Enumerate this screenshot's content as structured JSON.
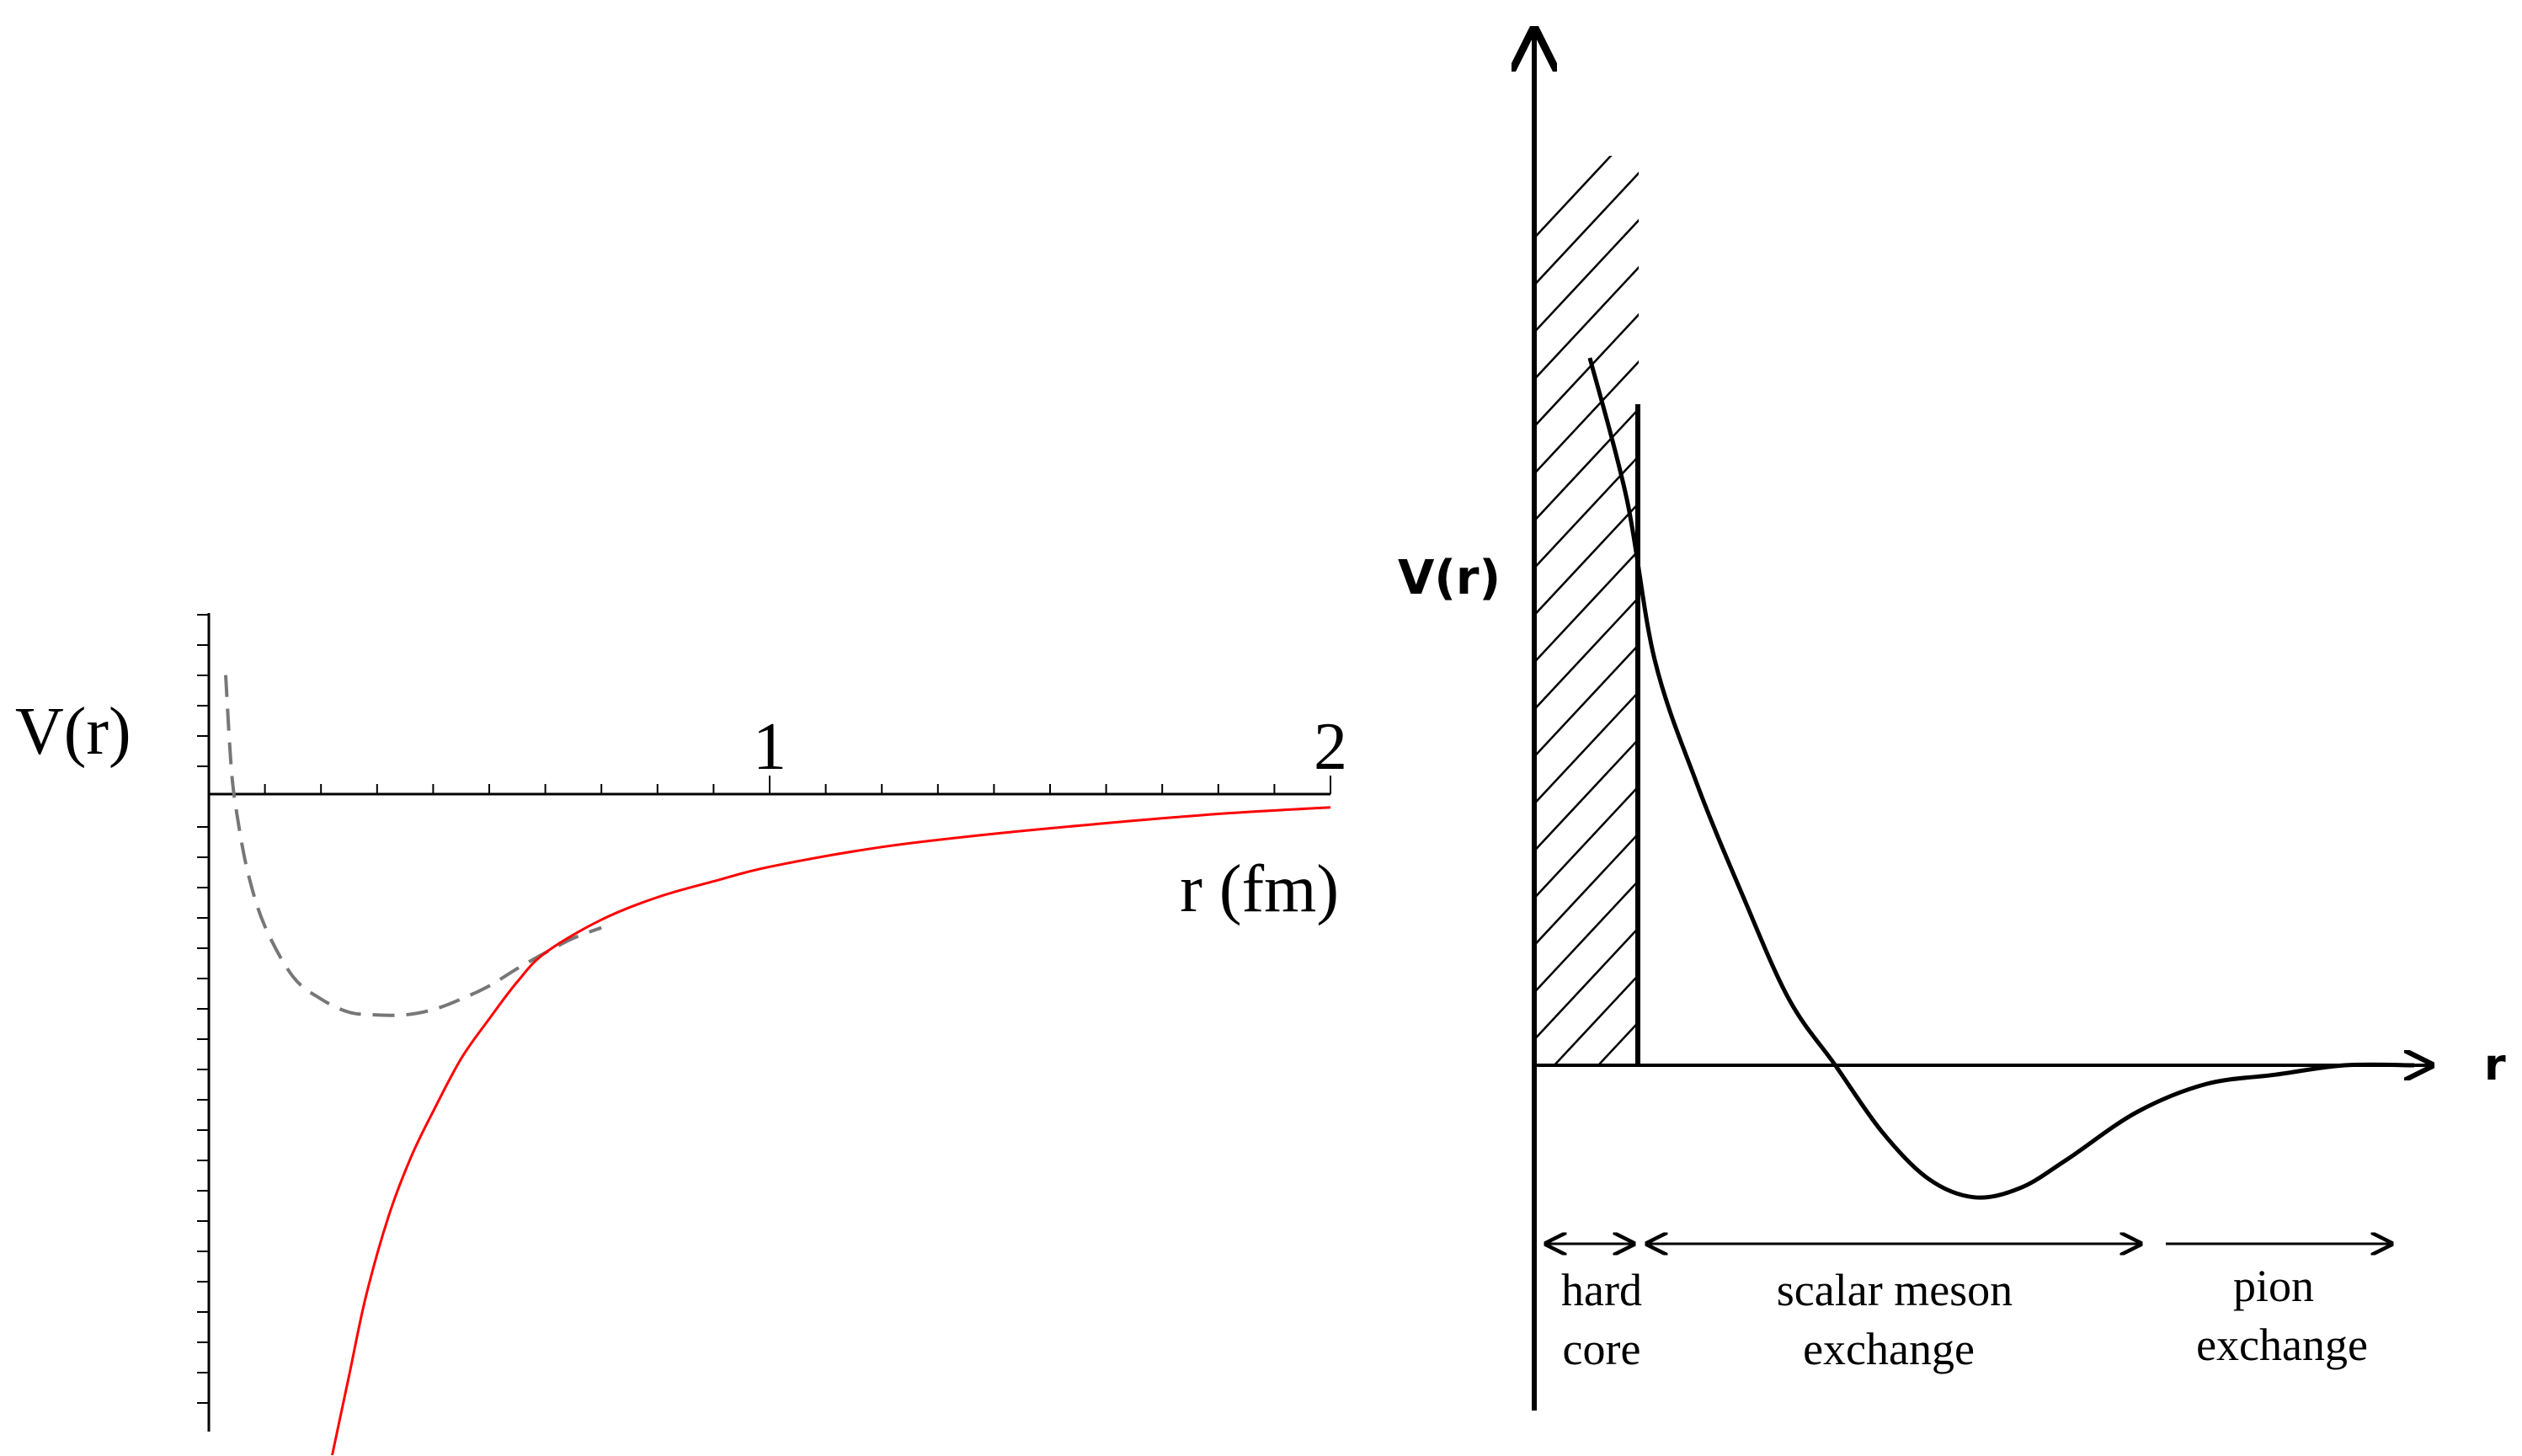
{
  "chart_data": [
    {
      "type": "line",
      "ylabel": "V(r)",
      "xlabel": "r (fm)",
      "xlim": [
        0,
        2
      ],
      "x_ticks": [
        {
          "value": 1,
          "label": "1"
        },
        {
          "value": 2,
          "label": "2"
        }
      ],
      "x_minor_step": 0.1,
      "series": [
        {
          "style": "dashed",
          "color": "#777777",
          "x": [
            0.03,
            0.04,
            0.05,
            0.07,
            0.1,
            0.15,
            0.2,
            0.25,
            0.3,
            0.35,
            0.4,
            0.45,
            0.5,
            0.55,
            0.6,
            0.65,
            0.7
          ],
          "y": [
            0.9,
            0.2,
            -0.15,
            -0.6,
            -1.0,
            -1.38,
            -1.55,
            -1.65,
            -1.67,
            -1.67,
            -1.63,
            -1.55,
            -1.45,
            -1.32,
            -1.2,
            -1.09,
            -1.01
          ]
        },
        {
          "style": "solid",
          "color": "#ff0000",
          "x": [
            0.22,
            0.25,
            0.28,
            0.32,
            0.36,
            0.4,
            0.45,
            0.5,
            0.55,
            0.6,
            0.7,
            0.8,
            0.9,
            1.0,
            1.2,
            1.4,
            1.6,
            1.8,
            2.0
          ],
          "y": [
            -5.0,
            -4.4,
            -3.8,
            -3.2,
            -2.75,
            -2.4,
            -2.0,
            -1.7,
            -1.42,
            -1.2,
            -0.95,
            -0.78,
            -0.66,
            -0.55,
            -0.4,
            -0.3,
            -0.22,
            -0.15,
            -0.1
          ]
        }
      ]
    },
    {
      "type": "line",
      "ylabel": "V(r)",
      "xlabel": "r",
      "hard_core_hatched": true,
      "series": [
        {
          "style": "solid",
          "color": "#000000",
          "x": [
            0.12,
            0.2,
            0.26,
            0.35,
            0.45,
            0.55,
            0.65,
            0.75,
            0.85,
            0.95,
            1.05,
            1.15,
            1.3,
            1.45,
            1.6,
            1.75,
            1.9
          ],
          "y": [
            0.75,
            0.6,
            0.43,
            0.3,
            0.18,
            0.07,
            0.0,
            -0.07,
            -0.12,
            -0.14,
            -0.13,
            -0.1,
            -0.05,
            -0.02,
            -0.01,
            0.0,
            0.0
          ]
        }
      ],
      "regions": [
        {
          "line1": "hard",
          "line2": "core"
        },
        {
          "line1": "scalar meson",
          "line2": "exchange"
        },
        {
          "line1": "pion",
          "line2": "exchange"
        }
      ]
    }
  ]
}
